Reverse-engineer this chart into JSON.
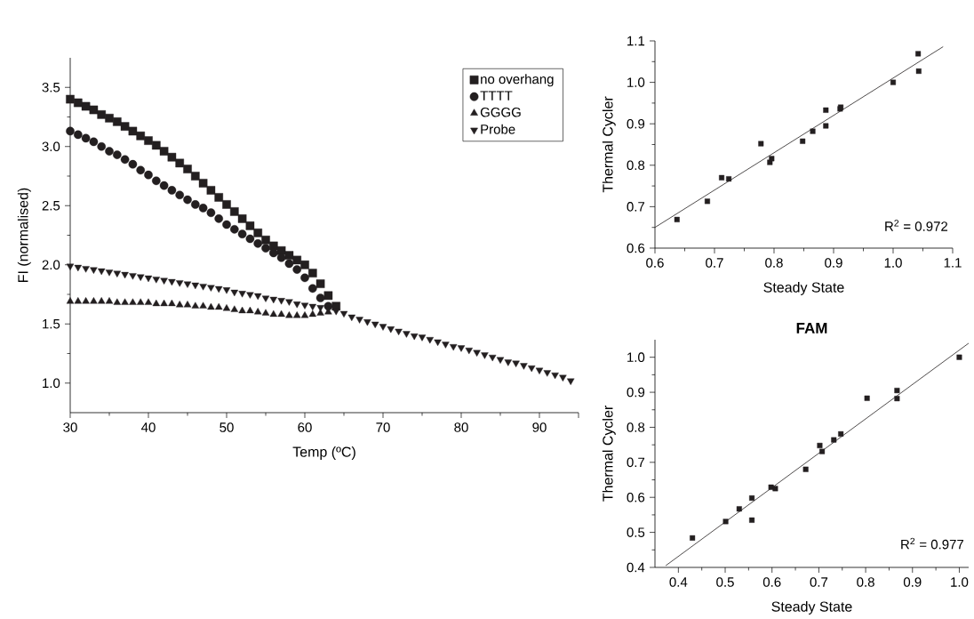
{
  "chart_data": [
    {
      "type": "scatter",
      "xlabel": "Temp (ºC)",
      "ylabel": "FI (normalised)",
      "legend": "top right",
      "x": [
        30,
        31,
        32,
        33,
        34,
        35,
        36,
        37,
        38,
        39,
        40,
        41,
        42,
        43,
        44,
        45,
        46,
        47,
        48,
        49,
        50,
        51,
        52,
        53,
        54,
        55,
        56,
        57,
        58,
        59,
        60,
        61,
        62,
        63,
        64,
        65,
        66,
        67,
        68,
        69,
        70,
        71,
        72,
        73,
        74,
        75,
        76,
        77,
        78,
        79,
        80,
        81,
        82,
        83,
        84,
        85,
        86,
        87,
        88,
        89,
        90,
        91,
        92,
        93,
        94
      ],
      "series": [
        {
          "name": "no overhang",
          "color": "#231f20",
          "marker": "square",
          "values": [
            3.4,
            3.37,
            3.34,
            3.31,
            3.27,
            3.24,
            3.21,
            3.17,
            3.13,
            3.09,
            3.05,
            3.01,
            2.96,
            2.91,
            2.86,
            2.81,
            2.75,
            2.69,
            2.63,
            2.57,
            2.51,
            2.45,
            2.39,
            2.33,
            2.27,
            2.21,
            2.16,
            2.12,
            2.08,
            2.04,
            2.0,
            1.93,
            1.84,
            1.74,
            1.65,
            null,
            null,
            null,
            null,
            null,
            null,
            null,
            null,
            null,
            null,
            null,
            null,
            null,
            null,
            null,
            null,
            null,
            null,
            null,
            null,
            null,
            null,
            null,
            null,
            null,
            null,
            null,
            null,
            null,
            null
          ]
        },
        {
          "name": "TTTT",
          "color": "#231f20",
          "marker": "circle",
          "values": [
            3.13,
            3.1,
            3.07,
            3.04,
            3.0,
            2.96,
            2.93,
            2.89,
            2.85,
            2.8,
            2.76,
            2.71,
            2.67,
            2.63,
            2.59,
            2.55,
            2.51,
            2.48,
            2.44,
            2.39,
            2.34,
            2.3,
            2.26,
            2.22,
            2.18,
            2.14,
            2.1,
            2.06,
            2.01,
            1.96,
            1.89,
            1.8,
            1.72,
            1.65,
            null,
            null,
            null,
            null,
            null,
            null,
            null,
            null,
            null,
            null,
            null,
            null,
            null,
            null,
            null,
            null,
            null,
            null,
            null,
            null,
            null,
            null,
            null,
            null,
            null,
            null,
            null,
            null,
            null,
            null,
            null
          ]
        },
        {
          "name": "GGGG",
          "color": "#231f20",
          "marker": "triangle",
          "values": [
            1.69,
            1.69,
            1.69,
            1.69,
            1.69,
            1.69,
            1.68,
            1.68,
            1.68,
            1.68,
            1.68,
            1.67,
            1.67,
            1.67,
            1.66,
            1.66,
            1.65,
            1.65,
            1.64,
            1.64,
            1.63,
            1.62,
            1.61,
            1.61,
            1.6,
            1.59,
            1.58,
            1.58,
            1.57,
            1.57,
            1.57,
            1.58,
            1.59,
            1.6,
            null,
            null,
            null,
            null,
            null,
            null,
            null,
            null,
            null,
            null,
            null,
            null,
            null,
            null,
            null,
            null,
            null,
            null,
            null,
            null,
            null,
            null,
            null,
            null,
            null,
            null,
            null,
            null,
            null,
            null,
            null
          ]
        },
        {
          "name": "Probe",
          "color": "#231f20",
          "marker": "triangle-down",
          "values": [
            1.99,
            1.98,
            1.97,
            1.96,
            1.95,
            1.94,
            1.93,
            1.92,
            1.91,
            1.9,
            1.89,
            1.88,
            1.87,
            1.86,
            1.85,
            1.84,
            1.83,
            1.82,
            1.81,
            1.8,
            1.79,
            1.77,
            1.76,
            1.75,
            1.74,
            1.72,
            1.71,
            1.7,
            1.69,
            1.67,
            1.66,
            1.65,
            1.64,
            1.63,
            1.61,
            1.59,
            1.56,
            1.54,
            1.52,
            1.5,
            1.48,
            1.46,
            1.44,
            1.42,
            1.4,
            1.39,
            1.37,
            1.35,
            1.33,
            1.31,
            1.3,
            1.28,
            1.26,
            1.24,
            1.22,
            1.2,
            1.18,
            1.17,
            1.15,
            1.13,
            1.11,
            1.09,
            1.07,
            1.05,
            1.02
          ]
        }
      ],
      "xlim": [
        30,
        95
      ],
      "xticks": [
        30,
        40,
        50,
        60,
        70,
        80,
        90,
        {
          "value": 95,
          "label": null
        }
      ],
      "ylim": [
        0.75,
        3.75
      ],
      "yticks": [
        {
          "value": 1,
          "label": "1.0"
        },
        {
          "value": 1.5,
          "label": "1.5"
        },
        {
          "value": 2,
          "label": "2.0"
        },
        {
          "value": 2.5,
          "label": "2.5"
        },
        {
          "value": 3,
          "label": "3.0"
        },
        {
          "value": 3.5,
          "label": "3.5"
        }
      ]
    },
    {
      "type": "scatter",
      "xlabel": "Steady State",
      "ylabel": "Thermal Cycler",
      "annotations": [
        "R$^{2}$ = 0.972"
      ],
      "series": [
        {
          "color": "#231f20",
          "marker": "square",
          "x": [
            0.637,
            0.688,
            0.712,
            0.724,
            0.778,
            0.793,
            0.796,
            0.848,
            0.865,
            0.887,
            0.887,
            0.911,
            0.912,
            1.0,
            1.042,
            1.043
          ],
          "values": [
            0.669,
            0.713,
            0.77,
            0.767,
            0.852,
            0.807,
            0.816,
            0.858,
            0.882,
            0.933,
            0.895,
            0.936,
            0.94,
            1.0,
            1.069,
            1.027
          ]
        },
        {
          "type": "line",
          "color": "#231f20",
          "marker": "none",
          "x": [
            0.6,
            1.084
          ],
          "values": [
            0.65,
            1.086
          ]
        }
      ],
      "xlim": [
        0.6,
        1.1
      ],
      "xticks": [
        {
          "value": 0.6,
          "label": "0.6"
        },
        {
          "value": 0.7,
          "label": "0.7"
        },
        {
          "value": 0.8,
          "label": "0.8"
        },
        {
          "value": 0.9,
          "label": "0.9"
        },
        {
          "value": 1,
          "label": "1.0"
        },
        {
          "value": 1.1,
          "label": "1.1"
        }
      ],
      "ylim": [
        0.6,
        1.1
      ],
      "yticks": [
        {
          "value": 0.6,
          "label": "0.6"
        },
        {
          "value": 0.7,
          "label": "0.7"
        },
        {
          "value": 0.8,
          "label": "0.8"
        },
        {
          "value": 0.9,
          "label": "0.9"
        },
        {
          "value": 1,
          "label": "1.0"
        },
        {
          "value": 1.1,
          "label": "1.1"
        }
      ]
    },
    {
      "type": "scatter",
      "title": "FAM",
      "xlabel": "Steady State",
      "ylabel": "Thermal Cycler",
      "annotations": [
        "R$^{2}$ = 0.977"
      ],
      "series": [
        {
          "color": "#231f20",
          "marker": "square",
          "x": [
            0.43,
            0.501,
            0.53,
            0.557,
            0.557,
            0.598,
            0.607,
            0.672,
            0.702,
            0.707,
            0.732,
            0.747,
            0.803,
            0.867,
            0.867,
            1.0
          ],
          "values": [
            0.484,
            0.531,
            0.567,
            0.598,
            0.535,
            0.629,
            0.625,
            0.68,
            0.748,
            0.731,
            0.764,
            0.781,
            0.883,
            0.905,
            0.882,
            1.0
          ]
        },
        {
          "type": "line",
          "color": "#231f20",
          "marker": "none",
          "x": [
            0.373,
            1.02
          ],
          "values": [
            0.405,
            1.04
          ]
        }
      ],
      "xlim": [
        0.35,
        1.02
      ],
      "xticks": [
        {
          "value": 0.4,
          "label": "0.4"
        },
        {
          "value": 0.5,
          "label": "0.5"
        },
        {
          "value": 0.6,
          "label": "0.6"
        },
        {
          "value": 0.7,
          "label": "0.7"
        },
        {
          "value": 0.8,
          "label": "0.8"
        },
        {
          "value": 0.9,
          "label": "0.9"
        },
        {
          "value": 1,
          "label": "1.0"
        }
      ],
      "ylim": [
        0.4,
        1.05
      ],
      "yticks": [
        {
          "value": 0.4,
          "label": "0.4"
        },
        {
          "value": 0.5,
          "label": "0.5"
        },
        {
          "value": 0.6,
          "label": "0.6"
        },
        {
          "value": 0.7,
          "label": "0.7"
        },
        {
          "value": 0.8,
          "label": "0.8"
        },
        {
          "value": 0.9,
          "label": "0.9"
        },
        {
          "value": 1,
          "label": "1.0"
        }
      ]
    }
  ]
}
